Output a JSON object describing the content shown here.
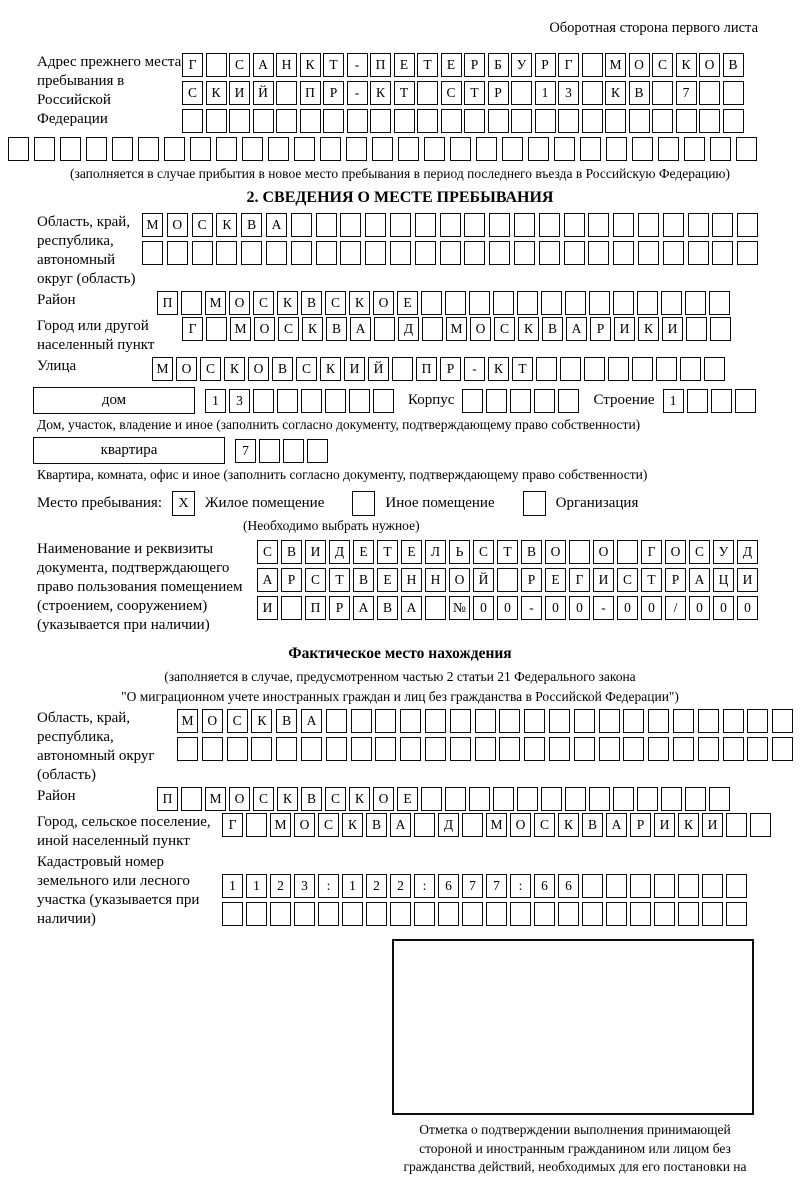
{
  "page": {
    "header_note": "Оборотная сторона первого листа"
  },
  "prev_address": {
    "label": "Адрес прежнего места пребывания в Российской Федерации",
    "rows": [
      [
        "Г",
        "",
        "С",
        "А",
        "Н",
        "К",
        "Т",
        "-",
        "П",
        "Е",
        "Т",
        "Е",
        "Р",
        "Б",
        "У",
        "Р",
        "Г",
        "",
        "М",
        "О",
        "С",
        "К",
        "О",
        "В"
      ],
      [
        "С",
        "К",
        "И",
        "Й",
        "",
        "П",
        "Р",
        "-",
        "К",
        "Т",
        "",
        "С",
        "Т",
        "Р",
        "",
        "1",
        "3",
        "",
        "К",
        "В",
        "",
        "7",
        "",
        ""
      ],
      [
        "",
        "",
        "",
        "",
        "",
        "",
        "",
        "",
        "",
        "",
        "",
        "",
        "",
        "",
        "",
        "",
        "",
        "",
        "",
        "",
        "",
        "",
        "",
        ""
      ],
      [
        "",
        "",
        "",
        "",
        "",
        "",
        "",
        "",
        "",
        "",
        "",
        "",
        "",
        "",
        "",
        "",
        "",
        "",
        "",
        "",
        "",
        "",
        "",
        "",
        "",
        "",
        "",
        "",
        ""
      ]
    ],
    "note": "(заполняется в случае прибытия в новое место пребывания в период последнего въезда в Российскую Федерацию)"
  },
  "section2": {
    "title": "2. СВЕДЕНИЯ О МЕСТЕ ПРЕБЫВАНИЯ",
    "oblast": {
      "label": "Область, край, республика, автономный округ (область)",
      "rows": [
        [
          "М",
          "О",
          "С",
          "К",
          "В",
          "А",
          "",
          "",
          "",
          "",
          "",
          "",
          "",
          "",
          "",
          "",
          "",
          "",
          "",
          "",
          "",
          "",
          "",
          "",
          ""
        ],
        [
          "",
          "",
          "",
          "",
          "",
          "",
          "",
          "",
          "",
          "",
          "",
          "",
          "",
          "",
          "",
          "",
          "",
          "",
          "",
          "",
          "",
          "",
          "",
          "",
          ""
        ]
      ]
    },
    "raion": {
      "label": "Район",
      "row": [
        "П",
        "",
        "М",
        "О",
        "С",
        "К",
        "В",
        "С",
        "К",
        "О",
        "Е",
        "",
        "",
        "",
        "",
        "",
        "",
        "",
        "",
        "",
        "",
        "",
        "",
        ""
      ]
    },
    "gorod": {
      "label": "Город или другой населенный пункт",
      "row": [
        "Г",
        "",
        "М",
        "О",
        "С",
        "К",
        "В",
        "А",
        "",
        "Д",
        "",
        "М",
        "О",
        "С",
        "К",
        "В",
        "А",
        "Р",
        "И",
        "К",
        "И",
        "",
        ""
      ]
    },
    "ulitsa": {
      "label": "Улица",
      "row": [
        "М",
        "О",
        "С",
        "К",
        "О",
        "В",
        "С",
        "К",
        "И",
        "Й",
        "",
        "П",
        "Р",
        "-",
        "К",
        "Т",
        "",
        "",
        "",
        "",
        "",
        "",
        "",
        ""
      ]
    },
    "dom": {
      "box_label": "дом",
      "cells": [
        "1",
        "3",
        "",
        "",
        "",
        "",
        "",
        ""
      ],
      "korpus_label": "Корпус",
      "korpus_cells": [
        "",
        "",
        "",
        "",
        ""
      ],
      "stroenie_label": "Строение",
      "stroenie_cells": [
        "1",
        "",
        "",
        ""
      ]
    },
    "dom_note": "Дом, участок, владение и иное (заполнить согласно документу, подтверждающему право собственности)",
    "kvartira": {
      "box_label": "квартира",
      "cells": [
        "7",
        "",
        "",
        ""
      ]
    },
    "kvartira_note": "Квартира, комната, офис и иное (заполнить согласно документу, подтверждающему право собственности)",
    "mesto": {
      "label": "Место пребывания:",
      "options": [
        {
          "label": "Жилое помещение",
          "mark": "X"
        },
        {
          "label": "Иное помещение",
          "mark": ""
        },
        {
          "label": "Организация",
          "mark": ""
        }
      ],
      "note": "(Необходимо выбрать нужное)"
    },
    "document": {
      "label": "Наименование и реквизиты документа, подтверждающего право пользования помещением (строением, сооружением) (указывается при наличии)",
      "rows": [
        [
          "С",
          "В",
          "И",
          "Д",
          "Е",
          "Т",
          "Е",
          "Л",
          "Ь",
          "С",
          "Т",
          "В",
          "О",
          "",
          "О",
          "",
          "Г",
          "О",
          "С",
          "У",
          "Д"
        ],
        [
          "А",
          "Р",
          "С",
          "Т",
          "В",
          "Е",
          "Н",
          "Н",
          "О",
          "Й",
          "",
          "Р",
          "Е",
          "Г",
          "И",
          "С",
          "Т",
          "Р",
          "А",
          "Ц",
          "И"
        ],
        [
          "И",
          "",
          "П",
          "Р",
          "А",
          "В",
          "А",
          "",
          "№",
          "0",
          "0",
          "-",
          "0",
          "0",
          "-",
          "0",
          "0",
          "/",
          "0",
          "0",
          "0"
        ]
      ]
    }
  },
  "fact": {
    "title": "Фактическое место нахождения",
    "note1": "(заполняется в случае, предусмотренном частью 2 статьи 21 Федерального закона",
    "note2": "\"О миграционном учете иностранных граждан и лиц без гражданства в Российской Федерации\")",
    "oblast": {
      "label": "Область, край, республика, автономный округ (область)",
      "rows": [
        [
          "М",
          "О",
          "С",
          "К",
          "В",
          "А",
          "",
          "",
          "",
          "",
          "",
          "",
          "",
          "",
          "",
          "",
          "",
          "",
          "",
          "",
          "",
          "",
          "",
          "",
          ""
        ],
        [
          "",
          "",
          "",
          "",
          "",
          "",
          "",
          "",
          "",
          "",
          "",
          "",
          "",
          "",
          "",
          "",
          "",
          "",
          "",
          "",
          "",
          "",
          "",
          "",
          ""
        ]
      ]
    },
    "raion": {
      "label": "Район",
      "row": [
        "П",
        "",
        "М",
        "О",
        "С",
        "К",
        "В",
        "С",
        "К",
        "О",
        "Е",
        "",
        "",
        "",
        "",
        "",
        "",
        "",
        "",
        "",
        "",
        "",
        "",
        ""
      ]
    },
    "gorod": {
      "label": "Город, сельское поселение, иной населенный пункт",
      "row": [
        "Г",
        "",
        "М",
        "О",
        "С",
        "К",
        "В",
        "А",
        "",
        "Д",
        "",
        "М",
        "О",
        "С",
        "К",
        "В",
        "А",
        "Р",
        "И",
        "К",
        "И",
        "",
        ""
      ]
    },
    "cadastre": {
      "label": "Кадастровый номер земельного или лесного участка (указывается при наличии)",
      "rows": [
        [
          "1",
          "1",
          "2",
          "3",
          ":",
          "1",
          "2",
          "2",
          ":",
          "6",
          "7",
          "7",
          ":",
          "6",
          "6",
          "",
          "",
          "",
          "",
          "",
          "",
          ""
        ],
        [
          "",
          "",
          "",
          "",
          "",
          "",
          "",
          "",
          "",
          "",
          "",
          "",
          "",
          "",
          "",
          "",
          "",
          "",
          "",
          "",
          "",
          ""
        ]
      ]
    },
    "stamp_caption": "Отметка о подтверждении выполнения принимающей стороной и иностранным гражданином или лицом без гражданства действий, необходимых для его постановки на учет по месту пребывания"
  }
}
